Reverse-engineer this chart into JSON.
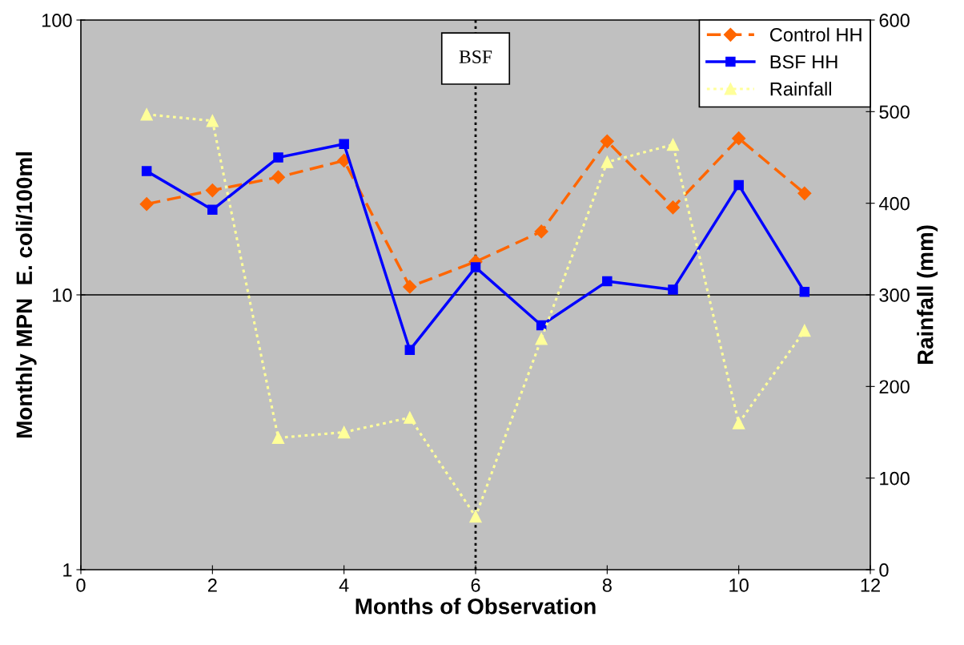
{
  "chart_data": {
    "type": "line",
    "xlabel": "Months of Observation",
    "ylabel": "Monthly MPN  E. coli/100ml",
    "y2label": "Rainfall (mm)",
    "x": [
      1,
      2,
      3,
      4,
      5,
      6,
      7,
      8,
      9,
      10,
      11
    ],
    "series": [
      {
        "name": "Control HH",
        "color": "#ff6600",
        "marker": "diamond",
        "line_style": "dashed",
        "values": [
          21.4,
          24.0,
          26.8,
          30.8,
          10.7,
          13.2,
          17.0,
          36.2,
          20.8,
          37.1,
          23.4
        ]
      },
      {
        "name": "BSF HH",
        "color": "#0000ff",
        "marker": "square",
        "line_style": "solid",
        "values": [
          28.2,
          20.4,
          31.6,
          35.4,
          6.3,
          12.6,
          7.75,
          11.2,
          10.45,
          25.1,
          10.25
        ]
      },
      {
        "name": "Rainfall",
        "color": "#ffff99",
        "marker": "triangle",
        "line_style": "dotted",
        "axis": "y2",
        "values": [
          497,
          490,
          144,
          150,
          166,
          58,
          252,
          445,
          464,
          160,
          261
        ]
      }
    ],
    "log": "y",
    "xlim": [
      0,
      12
    ],
    "xticks": [
      0,
      2,
      4,
      6,
      8,
      10,
      12
    ],
    "ylim": [
      1,
      100
    ],
    "yticks": [
      1,
      10,
      100
    ],
    "y2lim": [
      0,
      600
    ],
    "y2ticks": [
      0,
      100,
      200,
      300,
      400,
      500,
      600
    ],
    "ref_lines": [
      {
        "axis": "x",
        "value": 6,
        "label": "BSF",
        "color": "#000000",
        "line_style": "dotted"
      },
      {
        "axis": "y",
        "value": 10,
        "color": "#000000",
        "line_style": "solid"
      }
    ],
    "legend": "top right"
  }
}
